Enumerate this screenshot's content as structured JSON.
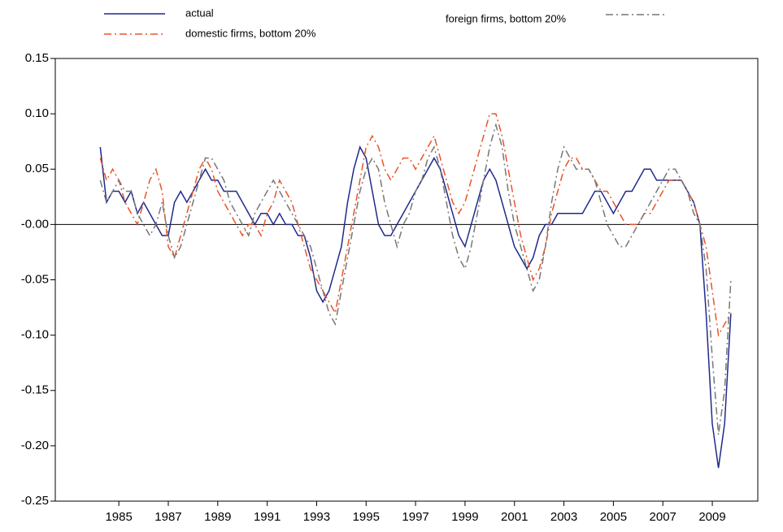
{
  "chart_data": {
    "type": "line",
    "x": [
      1984.25,
      1984.5,
      1984.75,
      1985,
      1985.25,
      1985.5,
      1985.75,
      1986,
      1986.25,
      1986.5,
      1986.75,
      1987,
      1987.25,
      1987.5,
      1987.75,
      1988,
      1988.25,
      1988.5,
      1988.75,
      1989,
      1989.25,
      1989.5,
      1989.75,
      1990,
      1990.25,
      1990.5,
      1990.75,
      1991,
      1991.25,
      1991.5,
      1991.75,
      1992,
      1992.25,
      1992.5,
      1992.75,
      1993,
      1993.25,
      1993.5,
      1993.75,
      1994,
      1994.25,
      1994.5,
      1994.75,
      1995,
      1995.25,
      1995.5,
      1995.75,
      1996,
      1996.25,
      1996.5,
      1996.75,
      1997,
      1997.25,
      1997.5,
      1997.75,
      1998,
      1998.25,
      1998.5,
      1998.75,
      1999,
      1999.25,
      1999.5,
      1999.75,
      2000,
      2000.25,
      2000.5,
      2000.75,
      2001,
      2001.25,
      2001.5,
      2001.75,
      2002,
      2002.25,
      2002.5,
      2002.75,
      2003,
      2003.25,
      2003.5,
      2003.75,
      2004,
      2004.25,
      2004.5,
      2004.75,
      2005,
      2005.25,
      2005.5,
      2005.75,
      2006,
      2006.25,
      2006.5,
      2006.75,
      2007,
      2007.25,
      2007.5,
      2007.75,
      2008,
      2008.25,
      2008.5,
      2008.75,
      2009,
      2009.25,
      2009.5,
      2009.75
    ],
    "series": [
      {
        "name": "actual",
        "color": "#1f2a8c",
        "dash": "none",
        "values": [
          0.07,
          0.02,
          0.03,
          0.03,
          0.02,
          0.03,
          0.01,
          0.02,
          0.01,
          0.0,
          -0.01,
          -0.01,
          0.02,
          0.03,
          0.02,
          0.03,
          0.04,
          0.05,
          0.04,
          0.04,
          0.03,
          0.03,
          0.03,
          0.02,
          0.01,
          0.0,
          0.01,
          0.01,
          0.0,
          0.01,
          0.0,
          0.0,
          -0.01,
          -0.01,
          -0.03,
          -0.06,
          -0.07,
          -0.06,
          -0.04,
          -0.02,
          0.02,
          0.05,
          0.07,
          0.06,
          0.03,
          0.0,
          -0.01,
          -0.01,
          0.0,
          0.01,
          0.02,
          0.03,
          0.04,
          0.05,
          0.06,
          0.05,
          0.03,
          0.01,
          -0.01,
          -0.02,
          0.0,
          0.02,
          0.04,
          0.05,
          0.04,
          0.02,
          0.0,
          -0.02,
          -0.03,
          -0.04,
          -0.03,
          -0.01,
          0.0,
          0.0,
          0.01,
          0.01,
          0.01,
          0.01,
          0.01,
          0.02,
          0.03,
          0.03,
          0.02,
          0.01,
          0.02,
          0.03,
          0.03,
          0.04,
          0.05,
          0.05,
          0.04,
          0.04,
          0.04,
          0.04,
          0.04,
          0.03,
          0.02,
          0.0,
          -0.08,
          -0.18,
          -0.22,
          -0.18,
          -0.08
        ]
      },
      {
        "name": "domestic firms, bottom 20%",
        "color": "#e8542a",
        "dash": "9,4,2,4",
        "values": [
          0.06,
          0.04,
          0.05,
          0.04,
          0.02,
          0.01,
          0.0,
          0.02,
          0.04,
          0.05,
          0.03,
          -0.02,
          -0.03,
          -0.01,
          0.01,
          0.03,
          0.05,
          0.06,
          0.05,
          0.03,
          0.02,
          0.01,
          0.0,
          -0.01,
          0.0,
          0.0,
          -0.01,
          0.01,
          0.02,
          0.04,
          0.03,
          0.02,
          0.0,
          -0.02,
          -0.04,
          -0.05,
          -0.06,
          -0.07,
          -0.08,
          -0.05,
          -0.02,
          0.01,
          0.04,
          0.07,
          0.08,
          0.07,
          0.05,
          0.04,
          0.05,
          0.06,
          0.06,
          0.05,
          0.06,
          0.07,
          0.08,
          0.06,
          0.04,
          0.02,
          0.01,
          0.02,
          0.04,
          0.06,
          0.08,
          0.1,
          0.1,
          0.08,
          0.05,
          0.02,
          -0.01,
          -0.03,
          -0.05,
          -0.04,
          -0.02,
          0.01,
          0.03,
          0.05,
          0.06,
          0.06,
          0.05,
          0.05,
          0.04,
          0.03,
          0.03,
          0.02,
          0.01,
          0.0,
          0.0,
          0.0,
          0.01,
          0.01,
          0.02,
          0.03,
          0.04,
          0.04,
          0.04,
          0.03,
          0.02,
          0.0,
          -0.02,
          -0.06,
          -0.1,
          -0.09,
          -0.08
        ]
      },
      {
        "name": "foreign firms, bottom 20%",
        "color": "#777777",
        "dash": "9,4,2,4",
        "values": [
          0.04,
          0.02,
          0.03,
          0.04,
          0.03,
          0.03,
          0.01,
          0.0,
          -0.01,
          0.0,
          0.02,
          -0.01,
          -0.03,
          -0.02,
          0.0,
          0.02,
          0.04,
          0.06,
          0.06,
          0.05,
          0.04,
          0.02,
          0.01,
          0.0,
          -0.01,
          0.01,
          0.02,
          0.03,
          0.04,
          0.03,
          0.02,
          0.01,
          0.0,
          -0.01,
          -0.02,
          -0.04,
          -0.06,
          -0.08,
          -0.09,
          -0.06,
          -0.03,
          0.0,
          0.03,
          0.05,
          0.06,
          0.05,
          0.02,
          0.0,
          -0.02,
          0.0,
          0.01,
          0.03,
          0.04,
          0.06,
          0.07,
          0.05,
          0.02,
          -0.01,
          -0.03,
          -0.04,
          -0.02,
          0.01,
          0.04,
          0.07,
          0.09,
          0.07,
          0.03,
          0.0,
          -0.02,
          -0.04,
          -0.06,
          -0.05,
          -0.02,
          0.02,
          0.05,
          0.07,
          0.06,
          0.05,
          0.05,
          0.05,
          0.04,
          0.02,
          0.0,
          -0.01,
          -0.02,
          -0.02,
          -0.01,
          0.0,
          0.01,
          0.02,
          0.03,
          0.04,
          0.05,
          0.05,
          0.04,
          0.03,
          0.01,
          0.0,
          -0.04,
          -0.12,
          -0.19,
          -0.15,
          -0.05
        ]
      }
    ],
    "xlim": [
      1982.43,
      2010.84
    ],
    "xticks": [
      1985,
      1987,
      1989,
      1991,
      1993,
      1995,
      1997,
      1999,
      2001,
      2003,
      2005,
      2007,
      2009
    ],
    "ylim": [
      -0.25,
      0.15
    ],
    "yticks": [
      0.15,
      {
        "value": 0.1,
        "label": "0.10"
      },
      0.05,
      {
        "value": 0,
        "label": "-0.00"
      },
      -0.05,
      {
        "value": -0.1,
        "label": "-0.10"
      },
      -0.15,
      {
        "value": -0.2,
        "label": "-0.20"
      },
      -0.25
    ],
    "zero_line": true
  }
}
